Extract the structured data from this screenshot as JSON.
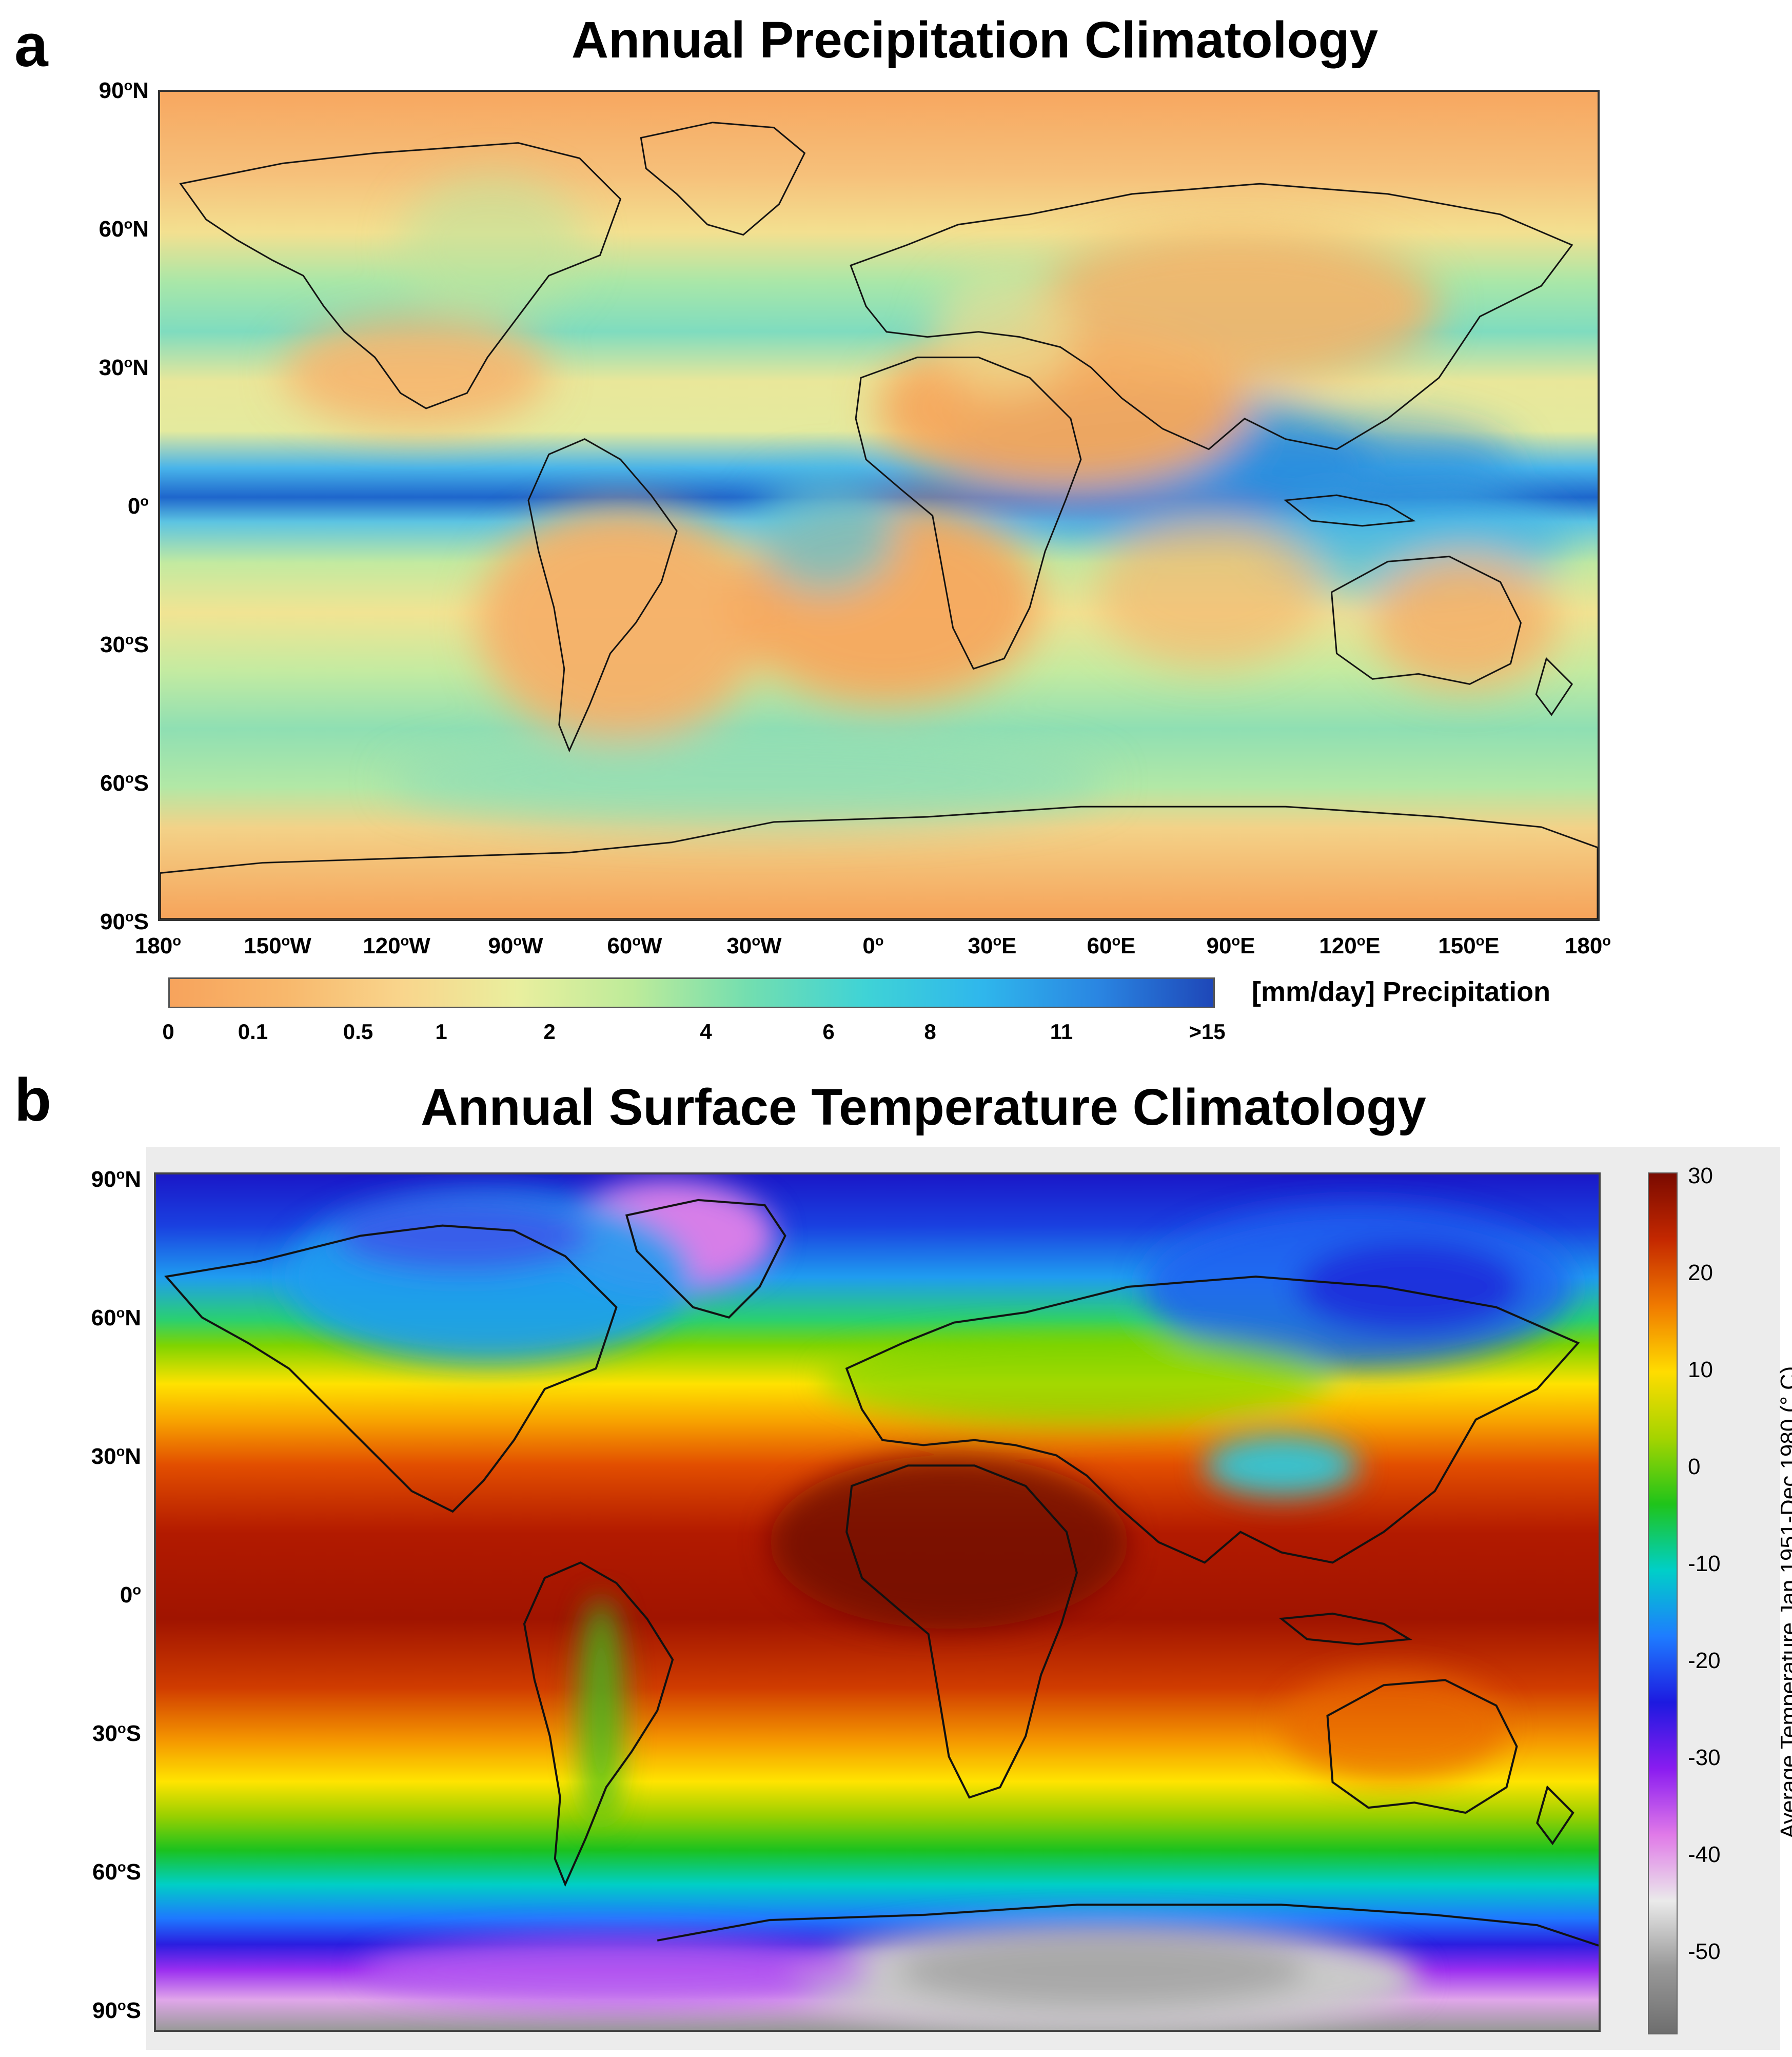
{
  "panel_a": {
    "letter": "a",
    "title": "Annual Precipitation Climatology",
    "lat_labels": [
      {
        "deg": "90",
        "hem": "N"
      },
      {
        "deg": "60",
        "hem": "N"
      },
      {
        "deg": "30",
        "hem": "N"
      },
      {
        "deg": "0",
        "hem": ""
      },
      {
        "deg": "30",
        "hem": "S"
      },
      {
        "deg": "60",
        "hem": "S"
      },
      {
        "deg": "90",
        "hem": "S"
      }
    ],
    "lon_labels": [
      {
        "deg": "180",
        "hem": ""
      },
      {
        "deg": "150",
        "hem": "W"
      },
      {
        "deg": "120",
        "hem": "W"
      },
      {
        "deg": "90",
        "hem": "W"
      },
      {
        "deg": "60",
        "hem": "W"
      },
      {
        "deg": "30",
        "hem": "W"
      },
      {
        "deg": "0",
        "hem": ""
      },
      {
        "deg": "30",
        "hem": "E"
      },
      {
        "deg": "60",
        "hem": "E"
      },
      {
        "deg": "90",
        "hem": "E"
      },
      {
        "deg": "120",
        "hem": "E"
      },
      {
        "deg": "150",
        "hem": "E"
      },
      {
        "deg": "180",
        "hem": ""
      }
    ],
    "colorbar": {
      "title": "[mm/day] Precipitation",
      "ticks": [
        "0",
        "0.1",
        "0.5",
        "1",
        "2",
        "4",
        "6",
        "8",
        "11",
        ">15"
      ],
      "colors": [
        "#f7a35c",
        "#f8b86c",
        "#f9d58c",
        "#e9ef9e",
        "#bdeb9a",
        "#72deb0",
        "#3fd3d6",
        "#2fb7ec",
        "#2a86e2",
        "#1e47b8"
      ]
    }
  },
  "panel_b": {
    "letter": "b",
    "title": "Annual Surface Temperature Climatology",
    "lat_labels": [
      {
        "deg": "90",
        "hem": "N"
      },
      {
        "deg": "60",
        "hem": "N"
      },
      {
        "deg": "30",
        "hem": "N"
      },
      {
        "deg": "0",
        "hem": ""
      },
      {
        "deg": "30",
        "hem": "S"
      },
      {
        "deg": "60",
        "hem": "S"
      },
      {
        "deg": "90",
        "hem": "S"
      }
    ],
    "colorbar": {
      "title": "Average Temperature Jan 1951-Dec 1980 (° C)",
      "ticks": [
        "30",
        "20",
        "10",
        "0",
        "-10",
        "-20",
        "-30",
        "-40",
        "-50"
      ],
      "colors": [
        "#7a0a00",
        "#c42800",
        "#f07a00",
        "#ffdc00",
        "#a5d400",
        "#1fc41a",
        "#00cfc8",
        "#1e7cff",
        "#1d1ae0",
        "#8a1cf0",
        "#e07ae8",
        "#eaeaea",
        "#999999",
        "#6e6e6e"
      ]
    }
  }
}
